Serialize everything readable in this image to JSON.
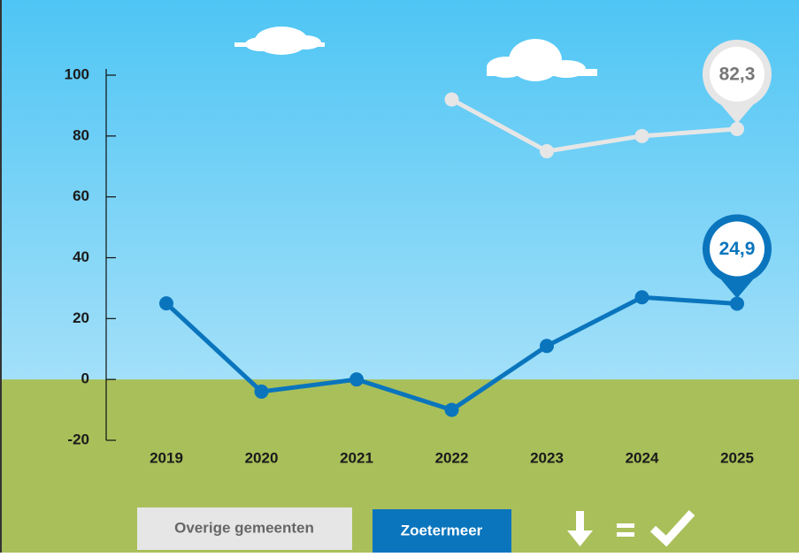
{
  "chart_data": {
    "type": "line",
    "categories": [
      "2019",
      "2020",
      "2021",
      "2022",
      "2023",
      "2024",
      "2025"
    ],
    "series": [
      {
        "name": "Overige gemeenten",
        "color": "#e6e6e6",
        "values": [
          null,
          null,
          null,
          92,
          75,
          80,
          82.3
        ],
        "value_labels": [
          null,
          null,
          null,
          null,
          null,
          null,
          "82,3"
        ]
      },
      {
        "name": "Zoetermeer",
        "color": "#0a75bd",
        "values": [
          25,
          -4,
          0,
          -10,
          11,
          27,
          24.9
        ],
        "value_labels": [
          null,
          null,
          null,
          null,
          null,
          null,
          "24,9"
        ]
      }
    ],
    "ylim": [
      -20,
      100
    ],
    "yticks": [
      -20,
      0,
      20,
      40,
      60,
      80,
      100
    ]
  }
}
